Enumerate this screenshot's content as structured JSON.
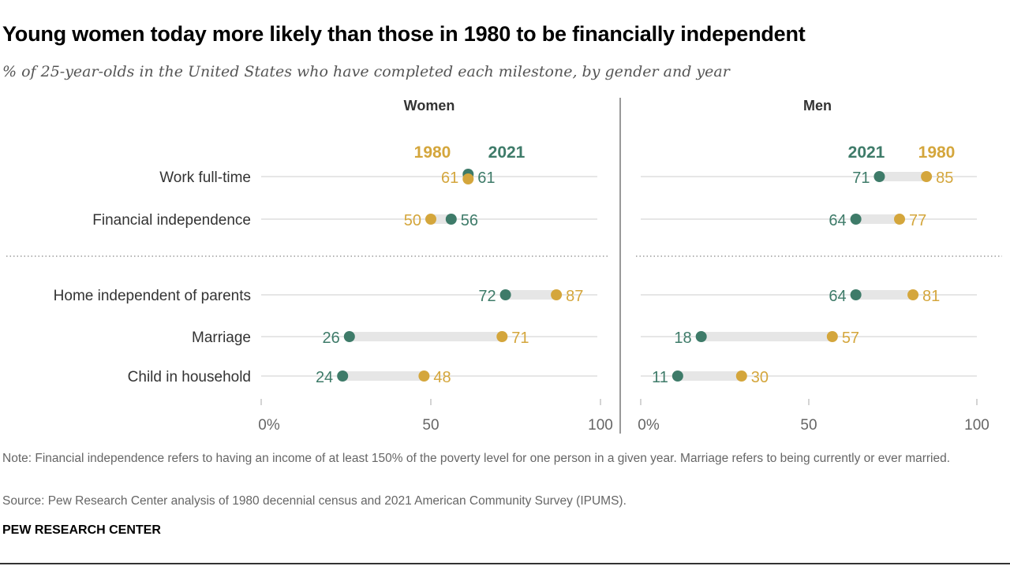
{
  "title": "Young women today more likely than those in 1980 to be financially independent",
  "subtitle": "% of 25-year-olds in the United States who have completed each milestone, by gender and year",
  "note": "Note: Financial independence refers to having an income of at least 150% of the poverty level for one person in a given year. Marriage refers to being currently or ever married.",
  "source": "Source: Pew Research Center analysis of 1980 decennial census and 2021 American Community Survey (IPUMS).",
  "brand": "PEW RESEARCH CENTER",
  "colors": {
    "y1980": "#d4a63c",
    "y2021": "#3e7b69"
  },
  "chart_data": {
    "type": "dot-plot",
    "categories": [
      "Work full-time",
      "Financial independence",
      "Home independent of parents",
      "Marriage",
      "Child in household"
    ],
    "xlim": [
      0,
      100
    ],
    "ticks": [
      "0%",
      "50",
      "100"
    ],
    "panels": [
      {
        "name": "Women",
        "legend": [
          "1980",
          "2021"
        ],
        "series": [
          {
            "name": "1980",
            "values": [
              61,
              50,
              87,
              71,
              48
            ]
          },
          {
            "name": "2021",
            "values": [
              61,
              56,
              72,
              26,
              24
            ]
          }
        ]
      },
      {
        "name": "Men",
        "legend": [
          "2021",
          "1980"
        ],
        "series": [
          {
            "name": "1980",
            "values": [
              85,
              77,
              81,
              57,
              30
            ]
          },
          {
            "name": "2021",
            "values": [
              71,
              64,
              64,
              18,
              11
            ]
          }
        ]
      }
    ]
  }
}
